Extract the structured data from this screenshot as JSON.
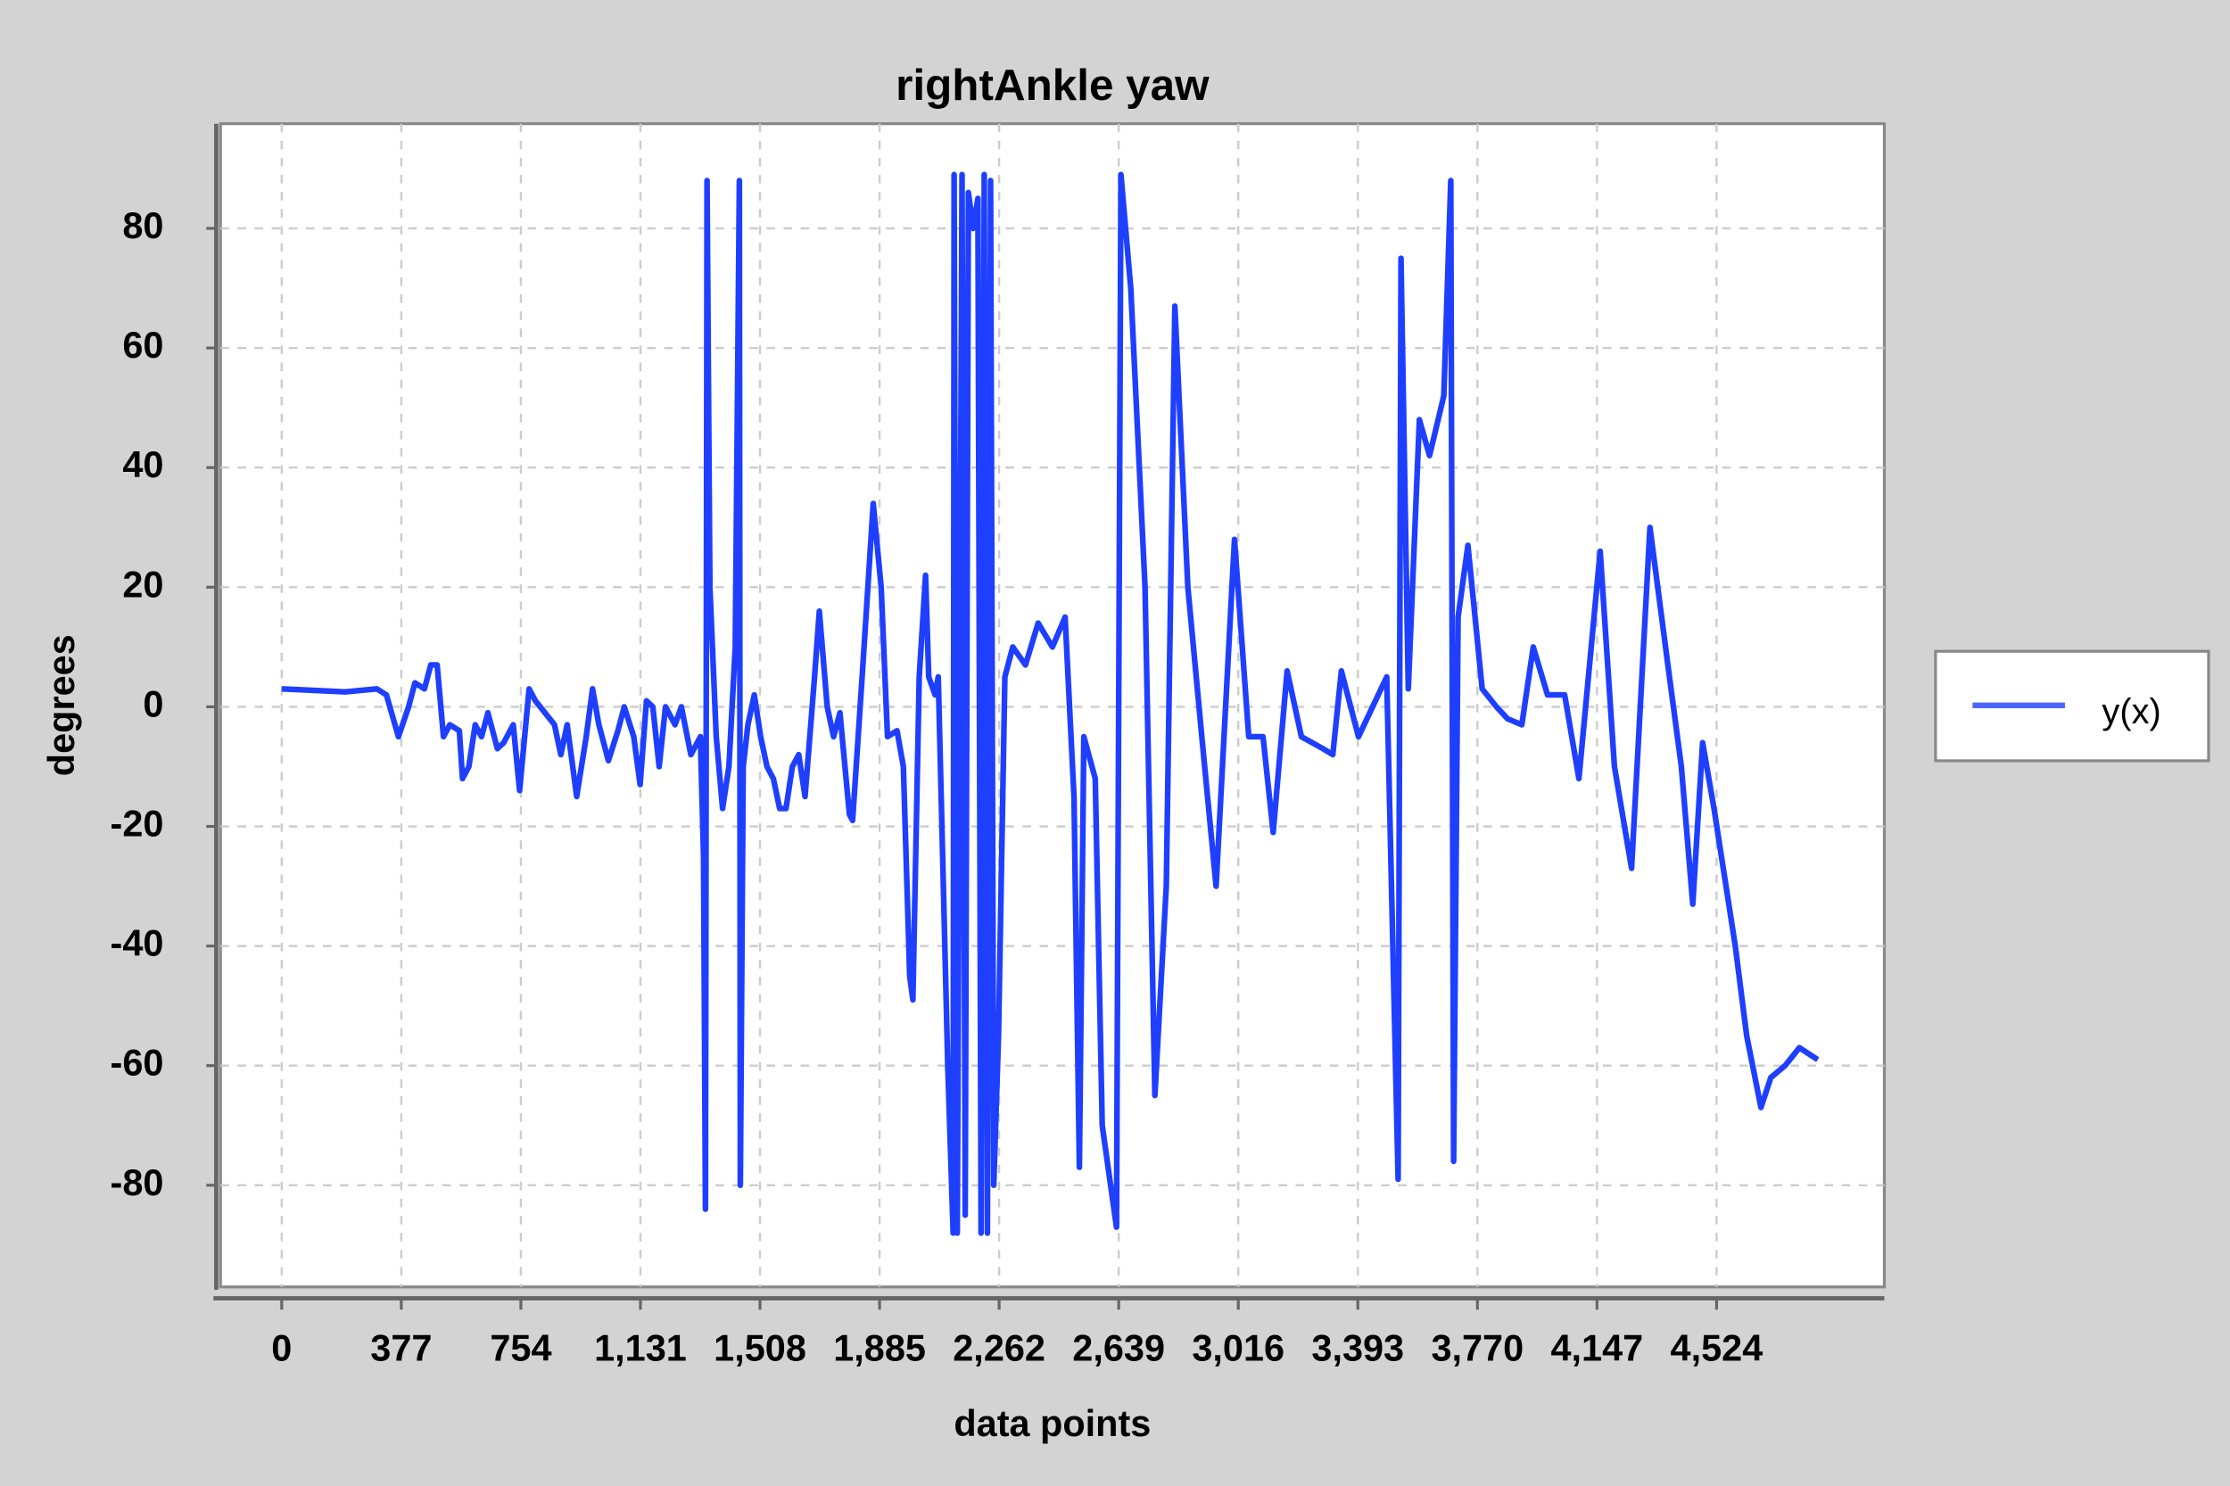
{
  "chart_data": {
    "type": "line",
    "title": "rightAnkle yaw",
    "xlabel": "data points",
    "ylabel": "degrees",
    "x": [
      0,
      200,
      300,
      330,
      368,
      400,
      420,
      450,
      470,
      490,
      510,
      530,
      560,
      570,
      590,
      610,
      630,
      650,
      680,
      700,
      730,
      750,
      780,
      800,
      830,
      860,
      880,
      900,
      930,
      960,
      980,
      1000,
      1030,
      1060,
      1080,
      1110,
      1130,
      1150,
      1170,
      1190,
      1210,
      1240,
      1260,
      1290,
      1320,
      1330,
      1336,
      1341,
      1350,
      1370,
      1390,
      1410,
      1430,
      1443,
      1446,
      1455,
      1470,
      1490,
      1510,
      1530,
      1550,
      1570,
      1590,
      1610,
      1630,
      1650,
      1680,
      1695,
      1720,
      1740,
      1760,
      1790,
      1800,
      1830,
      1865,
      1890,
      1910,
      1940,
      1960,
      1980,
      1990,
      2010,
      2030,
      2040,
      2060,
      2070,
      2100,
      2117,
      2120,
      2130,
      2145,
      2155,
      2165,
      2180,
      2195,
      2205,
      2215,
      2225,
      2235,
      2245,
      2260,
      2280,
      2305,
      2345,
      2385,
      2430,
      2470,
      2498,
      2515,
      2529,
      2565,
      2587,
      2632,
      2646,
      2677,
      2722,
      2753,
      2789,
      2816,
      2857,
      2901,
      2946,
      3004,
      3049,
      3094,
      3126,
      3170,
      3215,
      3283,
      3314,
      3341,
      3395,
      3484,
      3520,
      3529,
      3552,
      3587,
      3619,
      3664,
      3686,
      3695,
      3709,
      3740,
      3785,
      3830,
      3865,
      3910,
      3946,
      3991,
      4045,
      4090,
      4157,
      4202,
      4256,
      4314,
      4368,
      4413,
      4449,
      4480,
      4516,
      4583,
      4619,
      4664,
      4695,
      4740,
      4785,
      4843
    ],
    "series": [
      {
        "name": "y(x)",
        "color": "#1f3fff",
        "values": [
          3,
          2.5,
          3,
          2,
          -5,
          0,
          4,
          3,
          7,
          7,
          -5,
          -3,
          -4,
          -12,
          -10,
          -3,
          -5,
          -1,
          -7,
          -6,
          -3,
          -14,
          3,
          1,
          -1,
          -3,
          -8,
          -3,
          -15,
          -5,
          3,
          -3,
          -9,
          -4,
          0,
          -5,
          -13,
          1,
          0,
          -10,
          0,
          -3,
          0,
          -8,
          -5,
          -25,
          -84,
          88,
          20,
          -5,
          -17,
          -10,
          10,
          88,
          -80,
          -10,
          -3,
          2,
          -5,
          -10,
          -12,
          -17,
          -17,
          -10,
          -8,
          -15,
          5,
          16,
          0,
          -5,
          -1,
          -18,
          -19,
          5,
          34,
          20,
          -5,
          -4,
          -10,
          -45,
          -49,
          5,
          22,
          5,
          2,
          5,
          -60,
          -88,
          89,
          -88,
          89,
          -85,
          86,
          80,
          85,
          -88,
          89,
          -88,
          88,
          -80,
          -55,
          5,
          10,
          7,
          14,
          10,
          15,
          -15,
          -77,
          -5,
          -12,
          -70,
          -87,
          89,
          70,
          20,
          -65,
          -30,
          67,
          20,
          -5,
          -30,
          28,
          -5,
          -5,
          -21,
          6,
          -5,
          -7,
          -8,
          6,
          -5,
          5,
          -79,
          75,
          3,
          48,
          42,
          52,
          88,
          -76,
          15,
          27,
          3,
          0,
          -2,
          -3,
          10,
          2,
          2,
          -12,
          26,
          -10,
          -27,
          30,
          8,
          -10,
          -33,
          -6,
          -17,
          -40,
          -55,
          -67,
          -62,
          -60,
          -57,
          -59
        ]
      }
    ],
    "xlim": [
      -193,
      5053
    ],
    "ylim": [
      -97,
      97.5
    ],
    "xticks": [
      0,
      377,
      754,
      {
        "value": 1131,
        "label": "1,131"
      },
      {
        "value": 1508,
        "label": "1,508"
      },
      {
        "value": 1885,
        "label": "1,885"
      },
      {
        "value": 2262,
        "label": "2,262"
      },
      {
        "value": 2639,
        "label": "2,639"
      },
      {
        "value": 3016,
        "label": "3,016"
      },
      {
        "value": 3393,
        "label": "3,393"
      },
      {
        "value": 3770,
        "label": "3,770"
      },
      {
        "value": 4147,
        "label": "4,147"
      },
      {
        "value": 4524,
        "label": "4,524"
      }
    ],
    "yticks": [
      -80,
      -60,
      -40,
      -20,
      0,
      20,
      40,
      60,
      80
    ],
    "grid": true
  }
}
